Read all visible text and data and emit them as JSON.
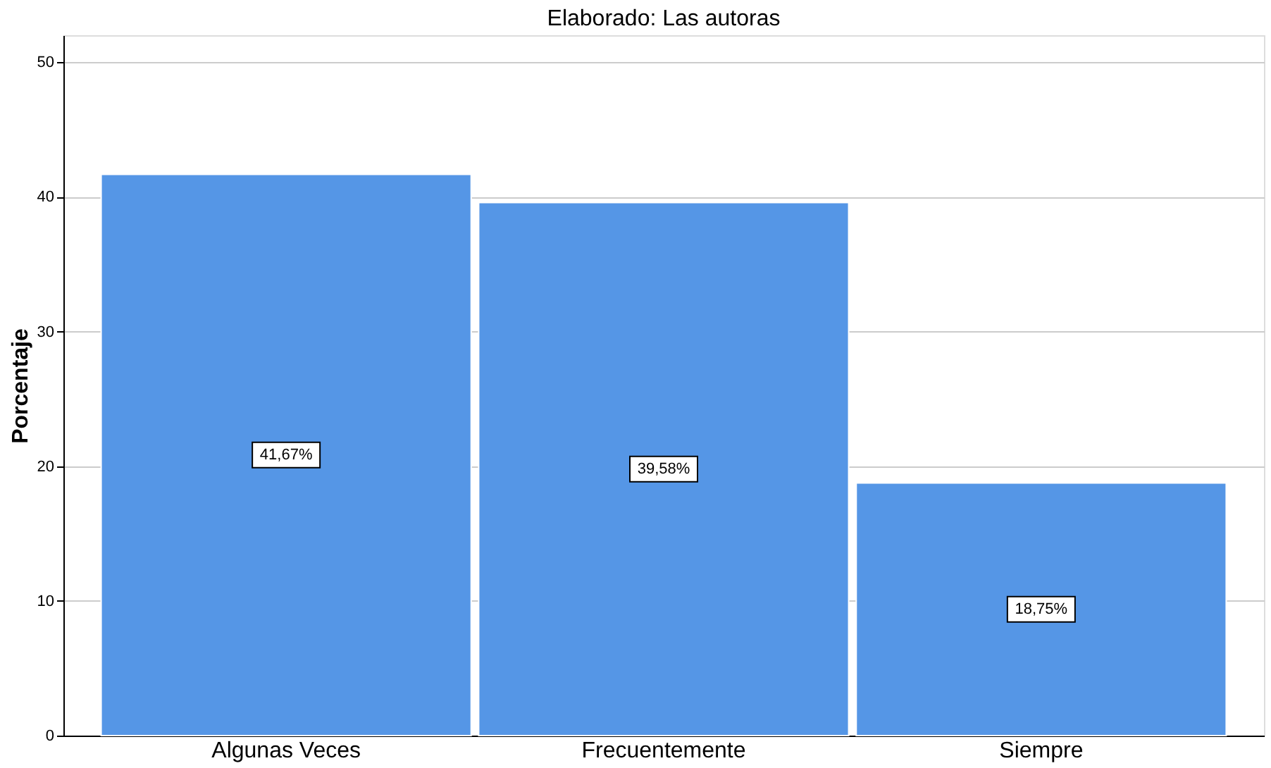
{
  "chart_data": {
    "type": "bar",
    "title": "Elaborado: Las autoras",
    "ylabel": "Porcentaje",
    "categories": [
      "Algunas Veces",
      "Frecuentemente",
      "Siempre"
    ],
    "values": [
      41.67,
      39.58,
      18.75
    ],
    "value_labels": [
      "41,67%",
      "39,58%",
      "18,75%"
    ],
    "color": "#5596e6",
    "ylim": [
      0,
      52
    ],
    "yticks": [
      0,
      10,
      20,
      30,
      40,
      50
    ],
    "grid": "y"
  }
}
